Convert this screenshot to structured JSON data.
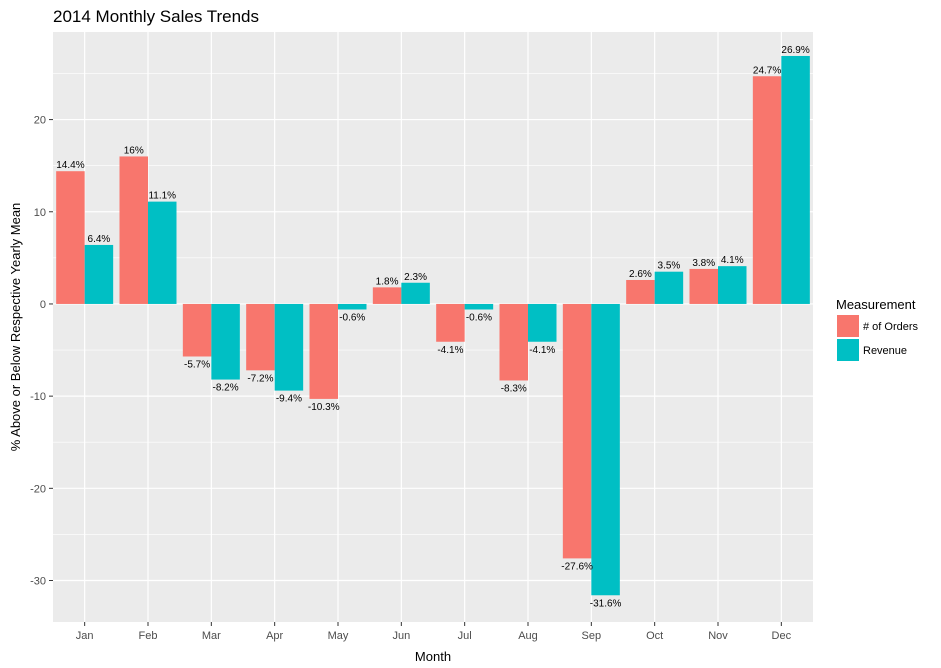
{
  "chart_data": {
    "type": "bar",
    "title": "2014 Monthly Sales Trends",
    "xlabel": "Month",
    "ylabel": "% Above or Below Respective Yearly Mean",
    "categories": [
      "Jan",
      "Feb",
      "Mar",
      "Apr",
      "May",
      "Jun",
      "Jul",
      "Aug",
      "Sep",
      "Oct",
      "Nov",
      "Dec"
    ],
    "series": [
      {
        "name": "# of Orders",
        "color": "#F8766D",
        "values": [
          14.4,
          16,
          -5.7,
          -7.2,
          -10.3,
          1.8,
          -4.1,
          -8.3,
          -27.6,
          2.6,
          3.8,
          24.7
        ],
        "labels": [
          "14.4%",
          "16%",
          "-5.7%",
          "-7.2%",
          "-10.3%",
          "1.8%",
          "-4.1%",
          "-8.3%",
          "-27.6%",
          "2.6%",
          "3.8%",
          "24.7%"
        ]
      },
      {
        "name": "Revenue",
        "color": "#00BFC4",
        "values": [
          6.4,
          11.1,
          -8.2,
          -9.4,
          -0.6,
          2.3,
          -0.6,
          -4.1,
          -31.6,
          3.5,
          4.1,
          26.9
        ],
        "labels": [
          "6.4%",
          "11.1%",
          "-8.2%",
          "-9.4%",
          "-0.6%",
          "2.3%",
          "-0.6%",
          "-4.1%",
          "-31.6%",
          "3.5%",
          "4.1%",
          "26.9%"
        ]
      }
    ],
    "ylim": [
      -34.5,
      29.5
    ],
    "yticks": [
      -30,
      -20,
      -10,
      0,
      10,
      20
    ],
    "ytick_labels": [
      "-30",
      "-20",
      "-10",
      "0",
      "10",
      "20"
    ],
    "grid": true,
    "legend": {
      "title": "Measurement",
      "position": "right"
    }
  }
}
